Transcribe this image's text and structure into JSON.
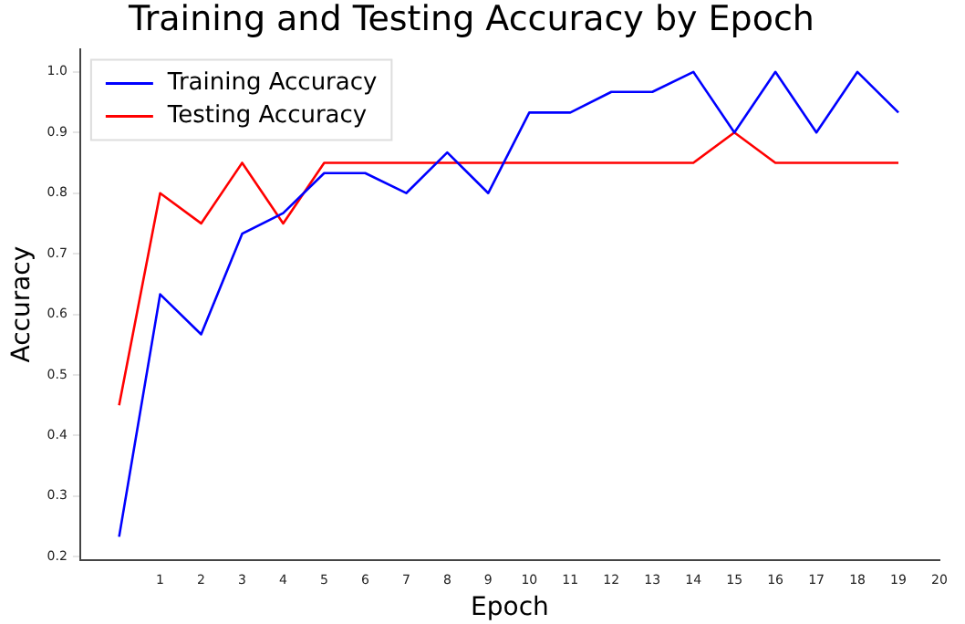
{
  "chart_data": {
    "type": "line",
    "title": "Training and Testing Accuracy by Epoch",
    "xlabel": "Epoch",
    "ylabel": "Accuracy",
    "x": [
      0,
      1,
      2,
      3,
      4,
      5,
      6,
      7,
      8,
      9,
      10,
      11,
      12,
      13,
      14,
      15,
      16,
      17,
      18,
      19
    ],
    "series": [
      {
        "name": "Training Accuracy",
        "color": "#0000ff",
        "values": [
          0.233,
          0.633,
          0.567,
          0.733,
          0.767,
          0.833,
          0.833,
          0.8,
          0.867,
          0.8,
          0.933,
          0.933,
          0.967,
          0.967,
          1.0,
          0.9,
          1.0,
          0.9,
          1.0,
          0.933
        ]
      },
      {
        "name": "Testing Accuracy",
        "color": "#ff0000",
        "values": [
          0.45,
          0.8,
          0.75,
          0.85,
          0.75,
          0.85,
          0.85,
          0.85,
          0.85,
          0.85,
          0.85,
          0.85,
          0.85,
          0.85,
          0.85,
          0.9,
          0.85,
          0.85,
          0.85,
          0.85
        ]
      }
    ],
    "xlim": [
      -0.95,
      20
    ],
    "xticks": [
      1,
      2,
      3,
      4,
      5,
      6,
      7,
      8,
      9,
      10,
      11,
      12,
      13,
      14,
      15,
      16,
      17,
      18,
      19,
      20
    ],
    "ylim": [
      0.195,
      1.038
    ],
    "yticks": [
      0.2,
      0.3,
      0.4,
      0.5,
      0.6,
      0.7,
      0.8,
      0.9,
      {
        "value": 1,
        "label": "1.0"
      }
    ],
    "grid": false,
    "legend": "top left",
    "marker": "none",
    "line_style": "solid"
  }
}
